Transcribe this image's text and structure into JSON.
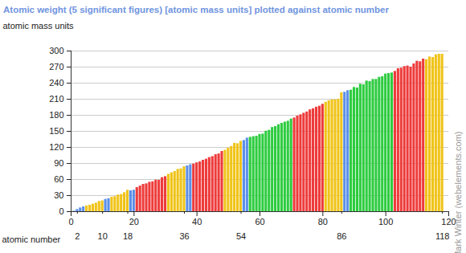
{
  "chart_data": {
    "type": "bar",
    "title": "Atomic weight (5 significant figures) [atomic mass units] plotted against atomic number",
    "ylabel": "atomic mass units",
    "secondary_xlabel": "atomic number",
    "credit": "© Mark Winter (webelements.com)",
    "x": [
      1,
      2,
      3,
      4,
      5,
      6,
      7,
      8,
      9,
      10,
      11,
      12,
      13,
      14,
      15,
      16,
      17,
      18,
      19,
      20,
      21,
      22,
      23,
      24,
      25,
      26,
      27,
      28,
      29,
      30,
      31,
      32,
      33,
      34,
      35,
      36,
      37,
      38,
      39,
      40,
      41,
      42,
      43,
      44,
      45,
      46,
      47,
      48,
      49,
      50,
      51,
      52,
      53,
      54,
      55,
      56,
      57,
      58,
      59,
      60,
      61,
      62,
      63,
      64,
      65,
      66,
      67,
      68,
      69,
      70,
      71,
      72,
      73,
      74,
      75,
      76,
      77,
      78,
      79,
      80,
      81,
      82,
      83,
      84,
      85,
      86,
      87,
      88,
      89,
      90,
      91,
      92,
      93,
      94,
      95,
      96,
      97,
      98,
      99,
      100,
      101,
      102,
      103,
      104,
      105,
      106,
      107,
      108,
      109,
      110,
      111,
      112,
      113,
      114,
      115,
      116,
      117,
      118
    ],
    "values": [
      1.0079,
      4.0026,
      6.941,
      9.0122,
      10.811,
      12.011,
      14.007,
      15.999,
      18.998,
      20.18,
      22.99,
      24.305,
      26.982,
      28.086,
      30.974,
      32.065,
      35.453,
      39.948,
      39.098,
      40.078,
      44.956,
      47.867,
      50.942,
      51.996,
      54.938,
      55.845,
      58.933,
      58.693,
      63.546,
      65.38,
      69.723,
      72.64,
      74.922,
      78.96,
      79.904,
      83.798,
      85.468,
      87.62,
      88.906,
      91.224,
      92.906,
      95.96,
      98,
      101.07,
      102.91,
      106.42,
      107.87,
      112.41,
      114.82,
      118.71,
      121.76,
      127.6,
      126.9,
      131.29,
      132.91,
      137.33,
      138.91,
      140.12,
      140.91,
      144.24,
      145,
      150.36,
      151.96,
      157.25,
      158.93,
      162.5,
      164.93,
      167.26,
      168.93,
      173.05,
      174.97,
      178.49,
      180.95,
      183.84,
      186.21,
      190.23,
      192.22,
      195.08,
      196.97,
      200.59,
      204.38,
      207.2,
      208.98,
      209,
      210,
      222,
      223,
      226,
      227,
      232.04,
      231.04,
      238.03,
      237,
      244,
      243,
      247,
      247,
      251,
      252,
      257,
      258,
      259,
      262,
      267,
      268,
      271,
      272,
      270,
      276,
      281,
      280,
      285,
      284,
      289,
      288,
      293,
      294,
      294
    ],
    "colors": [
      "#5b8fe8",
      "#5b8fe8",
      "#5b8fe8",
      "#5b8fe8",
      "#f0c419",
      "#f0c419",
      "#f0c419",
      "#f0c419",
      "#f0c419",
      "#f0c419",
      "#5b8fe8",
      "#5b8fe8",
      "#f0c419",
      "#f0c419",
      "#f0c419",
      "#f0c419",
      "#f0c419",
      "#f0c419",
      "#5b8fe8",
      "#5b8fe8",
      "#ee3b3b",
      "#ee3b3b",
      "#ee3b3b",
      "#ee3b3b",
      "#ee3b3b",
      "#ee3b3b",
      "#ee3b3b",
      "#ee3b3b",
      "#ee3b3b",
      "#ee3b3b",
      "#f0c419",
      "#f0c419",
      "#f0c419",
      "#f0c419",
      "#f0c419",
      "#f0c419",
      "#5b8fe8",
      "#5b8fe8",
      "#ee3b3b",
      "#ee3b3b",
      "#ee3b3b",
      "#ee3b3b",
      "#ee3b3b",
      "#ee3b3b",
      "#ee3b3b",
      "#ee3b3b",
      "#ee3b3b",
      "#ee3b3b",
      "#f0c419",
      "#f0c419",
      "#f0c419",
      "#f0c419",
      "#f0c419",
      "#f0c419",
      "#5b8fe8",
      "#5b8fe8",
      "#2ecc40",
      "#2ecc40",
      "#2ecc40",
      "#2ecc40",
      "#2ecc40",
      "#2ecc40",
      "#2ecc40",
      "#2ecc40",
      "#2ecc40",
      "#2ecc40",
      "#2ecc40",
      "#2ecc40",
      "#2ecc40",
      "#2ecc40",
      "#ee3b3b",
      "#ee3b3b",
      "#ee3b3b",
      "#ee3b3b",
      "#ee3b3b",
      "#ee3b3b",
      "#ee3b3b",
      "#ee3b3b",
      "#ee3b3b",
      "#ee3b3b",
      "#f0c419",
      "#f0c419",
      "#f0c419",
      "#f0c419",
      "#f0c419",
      "#f0c419",
      "#5b8fe8",
      "#5b8fe8",
      "#2ecc40",
      "#2ecc40",
      "#2ecc40",
      "#2ecc40",
      "#2ecc40",
      "#2ecc40",
      "#2ecc40",
      "#2ecc40",
      "#2ecc40",
      "#2ecc40",
      "#2ecc40",
      "#2ecc40",
      "#2ecc40",
      "#2ecc40",
      "#ee3b3b",
      "#ee3b3b",
      "#ee3b3b",
      "#ee3b3b",
      "#ee3b3b",
      "#ee3b3b",
      "#ee3b3b",
      "#ee3b3b",
      "#ee3b3b",
      "#ee3b3b",
      "#f0c419",
      "#f0c419",
      "#f0c419",
      "#f0c419",
      "#f0c419",
      "#f0c419"
    ],
    "xlim": [
      0,
      120
    ],
    "xticks": [
      0,
      20,
      40,
      60,
      80,
      100,
      120
    ],
    "secondary_xticks": [
      2,
      10,
      18,
      36,
      54,
      86,
      118
    ],
    "ylim": [
      0,
      300
    ],
    "yticks": [
      0,
      30,
      60,
      90,
      120,
      150,
      180,
      210,
      240,
      270,
      300
    ],
    "grid": true
  }
}
